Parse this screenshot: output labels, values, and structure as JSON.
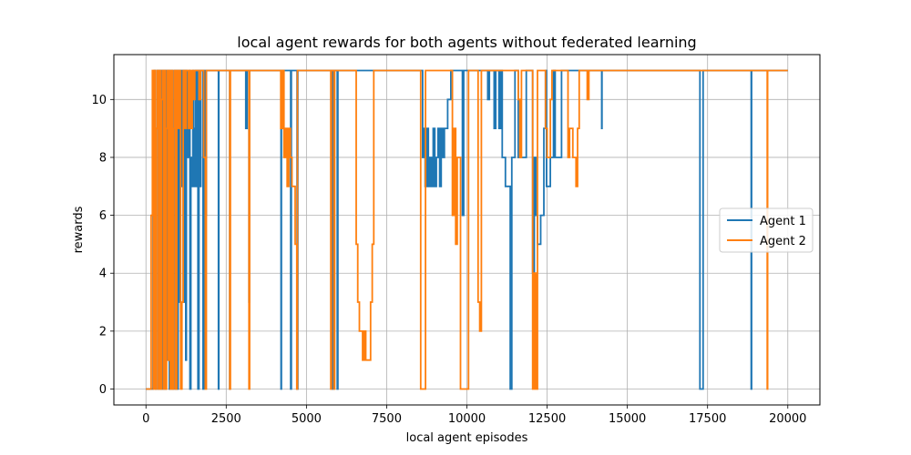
{
  "chart_data": {
    "type": "line",
    "title": "local agent rewards for both agents without federated learning",
    "xlabel": "local agent episodes",
    "ylabel": "rewards",
    "xlim": [
      -1000,
      21000
    ],
    "ylim": [
      -0.55,
      11.55
    ],
    "xticks": [
      0,
      2500,
      5000,
      7500,
      10000,
      12500,
      15000,
      17500,
      20000
    ],
    "yticks": [
      0,
      2,
      4,
      6,
      8,
      10
    ],
    "grid": true,
    "legend_position": "center-right",
    "series": [
      {
        "name": "Agent 1",
        "color": "#1f77b4",
        "points": [
          [
            0,
            0
          ],
          [
            200,
            0
          ],
          [
            220,
            7
          ],
          [
            260,
            11
          ],
          [
            300,
            0
          ],
          [
            330,
            9
          ],
          [
            360,
            11
          ],
          [
            390,
            0
          ],
          [
            410,
            10
          ],
          [
            440,
            11
          ],
          [
            470,
            0
          ],
          [
            500,
            11
          ],
          [
            540,
            0
          ],
          [
            560,
            11
          ],
          [
            600,
            0
          ],
          [
            620,
            8
          ],
          [
            650,
            11
          ],
          [
            680,
            1
          ],
          [
            700,
            11
          ],
          [
            730,
            0
          ],
          [
            760,
            10
          ],
          [
            780,
            11
          ],
          [
            820,
            0
          ],
          [
            850,
            9
          ],
          [
            880,
            11
          ],
          [
            910,
            0
          ],
          [
            930,
            11
          ],
          [
            970,
            0
          ],
          [
            1000,
            11
          ],
          [
            1040,
            3
          ],
          [
            1060,
            11
          ],
          [
            1100,
            7
          ],
          [
            1130,
            11
          ],
          [
            1160,
            3
          ],
          [
            1200,
            11
          ],
          [
            1240,
            1
          ],
          [
            1260,
            11
          ],
          [
            1280,
            8
          ],
          [
            1320,
            9
          ],
          [
            1350,
            11
          ],
          [
            1370,
            0
          ],
          [
            1400,
            8
          ],
          [
            1430,
            7
          ],
          [
            1460,
            11
          ],
          [
            1480,
            7
          ],
          [
            1510,
            9
          ],
          [
            1540,
            11
          ],
          [
            1560,
            7
          ],
          [
            1590,
            11
          ],
          [
            1620,
            0
          ],
          [
            1650,
            11
          ],
          [
            1680,
            7
          ],
          [
            1710,
            11
          ],
          [
            1750,
            11
          ],
          [
            1780,
            0
          ],
          [
            1800,
            11
          ],
          [
            1850,
            6
          ],
          [
            1880,
            11
          ],
          [
            2250,
            11
          ],
          [
            2260,
            0
          ],
          [
            2270,
            11
          ],
          [
            2600,
            11
          ],
          [
            2610,
            0
          ],
          [
            2620,
            11
          ],
          [
            3100,
            11
          ],
          [
            3110,
            9
          ],
          [
            3150,
            11
          ],
          [
            3200,
            11
          ],
          [
            3210,
            3
          ],
          [
            3220,
            11
          ],
          [
            4200,
            11
          ],
          [
            4210,
            0
          ],
          [
            4220,
            11
          ],
          [
            4500,
            11
          ],
          [
            4510,
            0
          ],
          [
            4530,
            11
          ],
          [
            4700,
            11
          ],
          [
            4710,
            0
          ],
          [
            4730,
            11
          ],
          [
            5800,
            11
          ],
          [
            5810,
            0
          ],
          [
            5830,
            11
          ],
          [
            5950,
            11
          ],
          [
            5960,
            0
          ],
          [
            5980,
            11
          ],
          [
            8600,
            11
          ],
          [
            8620,
            8
          ],
          [
            8650,
            9
          ],
          [
            8700,
            7
          ],
          [
            8750,
            9
          ],
          [
            8800,
            7
          ],
          [
            8850,
            8
          ],
          [
            8900,
            7
          ],
          [
            8950,
            9
          ],
          [
            9000,
            7
          ],
          [
            9050,
            8
          ],
          [
            9100,
            9
          ],
          [
            9150,
            7
          ],
          [
            9200,
            9
          ],
          [
            9250,
            8
          ],
          [
            9300,
            9
          ],
          [
            9400,
            10
          ],
          [
            9500,
            11
          ],
          [
            9850,
            11
          ],
          [
            9860,
            6
          ],
          [
            9900,
            11
          ],
          [
            10600,
            11
          ],
          [
            10650,
            10
          ],
          [
            10700,
            11
          ],
          [
            10800,
            11
          ],
          [
            10850,
            9
          ],
          [
            10900,
            11
          ],
          [
            10950,
            11
          ],
          [
            11000,
            9
          ],
          [
            11050,
            11
          ],
          [
            11100,
            8
          ],
          [
            11200,
            7
          ],
          [
            11300,
            7
          ],
          [
            11350,
            0
          ],
          [
            11400,
            8
          ],
          [
            11500,
            11
          ],
          [
            11600,
            8
          ],
          [
            11800,
            8
          ],
          [
            11850,
            11
          ],
          [
            12000,
            11
          ],
          [
            12050,
            4
          ],
          [
            12100,
            8
          ],
          [
            12150,
            6
          ],
          [
            12200,
            5
          ],
          [
            12300,
            6
          ],
          [
            12400,
            9
          ],
          [
            12450,
            11
          ],
          [
            12480,
            7
          ],
          [
            12600,
            8
          ],
          [
            12700,
            11
          ],
          [
            12750,
            8
          ],
          [
            12900,
            8
          ],
          [
            12950,
            11
          ],
          [
            14000,
            11
          ],
          [
            14200,
            9
          ],
          [
            14210,
            11
          ],
          [
            17250,
            11
          ],
          [
            17260,
            0
          ],
          [
            17350,
            0
          ],
          [
            17360,
            11
          ],
          [
            18850,
            11
          ],
          [
            18860,
            0
          ],
          [
            18870,
            11
          ],
          [
            20000,
            11
          ]
        ]
      },
      {
        "name": "Agent 2",
        "color": "#ff7f0e",
        "points": [
          [
            0,
            0
          ],
          [
            150,
            0
          ],
          [
            160,
            6
          ],
          [
            200,
            11
          ],
          [
            230,
            0
          ],
          [
            260,
            11
          ],
          [
            300,
            0
          ],
          [
            330,
            9
          ],
          [
            360,
            11
          ],
          [
            390,
            0
          ],
          [
            420,
            11
          ],
          [
            450,
            0
          ],
          [
            480,
            10
          ],
          [
            510,
            11
          ],
          [
            540,
            0
          ],
          [
            580,
            11
          ],
          [
            610,
            0
          ],
          [
            640,
            9
          ],
          [
            670,
            11
          ],
          [
            700,
            1
          ],
          [
            730,
            11
          ],
          [
            760,
            0
          ],
          [
            800,
            11
          ],
          [
            830,
            0
          ],
          [
            860,
            9
          ],
          [
            890,
            11
          ],
          [
            920,
            0
          ],
          [
            960,
            11
          ],
          [
            1000,
            9
          ],
          [
            1040,
            11
          ],
          [
            1080,
            0
          ],
          [
            1120,
            3
          ],
          [
            1160,
            11
          ],
          [
            1200,
            9
          ],
          [
            1250,
            11
          ],
          [
            1280,
            11
          ],
          [
            1320,
            9
          ],
          [
            1360,
            11
          ],
          [
            1400,
            9
          ],
          [
            1440,
            11
          ],
          [
            1480,
            10
          ],
          [
            1520,
            11
          ],
          [
            1600,
            11
          ],
          [
            1650,
            10
          ],
          [
            1700,
            11
          ],
          [
            1750,
            11
          ],
          [
            1800,
            8
          ],
          [
            1850,
            0
          ],
          [
            1880,
            11
          ],
          [
            2600,
            11
          ],
          [
            2610,
            0
          ],
          [
            2630,
            11
          ],
          [
            3200,
            11
          ],
          [
            3210,
            0
          ],
          [
            3230,
            11
          ],
          [
            4150,
            11
          ],
          [
            4200,
            9
          ],
          [
            4250,
            11
          ],
          [
            4300,
            8
          ],
          [
            4350,
            9
          ],
          [
            4400,
            7
          ],
          [
            4450,
            9
          ],
          [
            4500,
            8
          ],
          [
            4550,
            7
          ],
          [
            4600,
            7
          ],
          [
            4650,
            5
          ],
          [
            4700,
            0
          ],
          [
            4720,
            11
          ],
          [
            5750,
            11
          ],
          [
            5760,
            0
          ],
          [
            5780,
            11
          ],
          [
            5850,
            11
          ],
          [
            5860,
            0
          ],
          [
            5880,
            11
          ],
          [
            6500,
            11
          ],
          [
            6550,
            5
          ],
          [
            6600,
            3
          ],
          [
            6650,
            2
          ],
          [
            6750,
            1
          ],
          [
            6800,
            2
          ],
          [
            6850,
            1
          ],
          [
            7000,
            3
          ],
          [
            7050,
            5
          ],
          [
            7100,
            11
          ],
          [
            8550,
            11
          ],
          [
            8560,
            0
          ],
          [
            8700,
            0
          ],
          [
            8710,
            11
          ],
          [
            9500,
            11
          ],
          [
            9550,
            6
          ],
          [
            9600,
            9
          ],
          [
            9650,
            5
          ],
          [
            9700,
            8
          ],
          [
            9800,
            0
          ],
          [
            10000,
            0
          ],
          [
            10050,
            11
          ],
          [
            10300,
            11
          ],
          [
            10350,
            3
          ],
          [
            10400,
            2
          ],
          [
            10450,
            11
          ],
          [
            11550,
            11
          ],
          [
            11600,
            10
          ],
          [
            11650,
            8
          ],
          [
            11700,
            11
          ],
          [
            12000,
            11
          ],
          [
            12050,
            0
          ],
          [
            12100,
            4
          ],
          [
            12150,
            0
          ],
          [
            12200,
            11
          ],
          [
            12400,
            11
          ],
          [
            12450,
            9
          ],
          [
            12500,
            8
          ],
          [
            12600,
            10
          ],
          [
            12650,
            11
          ],
          [
            13100,
            11
          ],
          [
            13150,
            8
          ],
          [
            13200,
            9
          ],
          [
            13300,
            8
          ],
          [
            13400,
            7
          ],
          [
            13450,
            9
          ],
          [
            13500,
            11
          ],
          [
            13700,
            11
          ],
          [
            13750,
            10
          ],
          [
            13800,
            11
          ],
          [
            19350,
            11
          ],
          [
            19360,
            0
          ],
          [
            19370,
            11
          ],
          [
            20000,
            11
          ]
        ]
      }
    ]
  }
}
